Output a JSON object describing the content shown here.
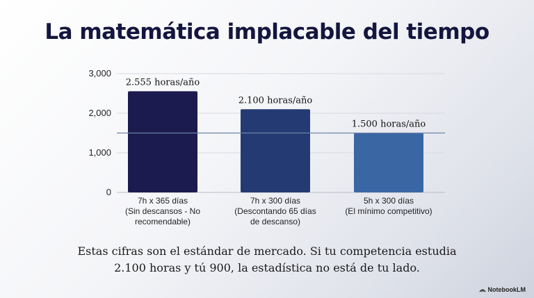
{
  "title": "La matemática implacable del tiempo",
  "chart_data": {
    "type": "bar",
    "categories": [
      [
        "7h x 365 días",
        "(Sin descansos - No",
        "recomendable)"
      ],
      [
        "7h x 300 días",
        "(Descontando 65 días",
        "de descanso)"
      ],
      [
        "5h x 300 días",
        "(El mínimo competitivo)"
      ]
    ],
    "values": [
      2555,
      2100,
      1500
    ],
    "data_labels": [
      "2.555 horas/año",
      "2.100 horas/año",
      "1.500 horas/año"
    ],
    "yticks": [
      "3,000",
      "2,000",
      "1,000",
      "0"
    ],
    "ytick_values": [
      3000,
      2000,
      1000,
      0
    ],
    "ylim": [
      0,
      3000
    ],
    "colors": [
      "#1b1b50",
      "#233a72",
      "#3a67a4"
    ],
    "reference_line": {
      "value": 1500,
      "color": "#6d82a6"
    },
    "grid": true
  },
  "note_line1": "Estas cifras son el estándar de mercado. Si tu competencia estudia",
  "note_line2": "2.100 horas y tú 900, la estadística no está de tu lado.",
  "brand": {
    "name": "NotebookLM",
    "icon": "notebooklm-logo-icon"
  }
}
